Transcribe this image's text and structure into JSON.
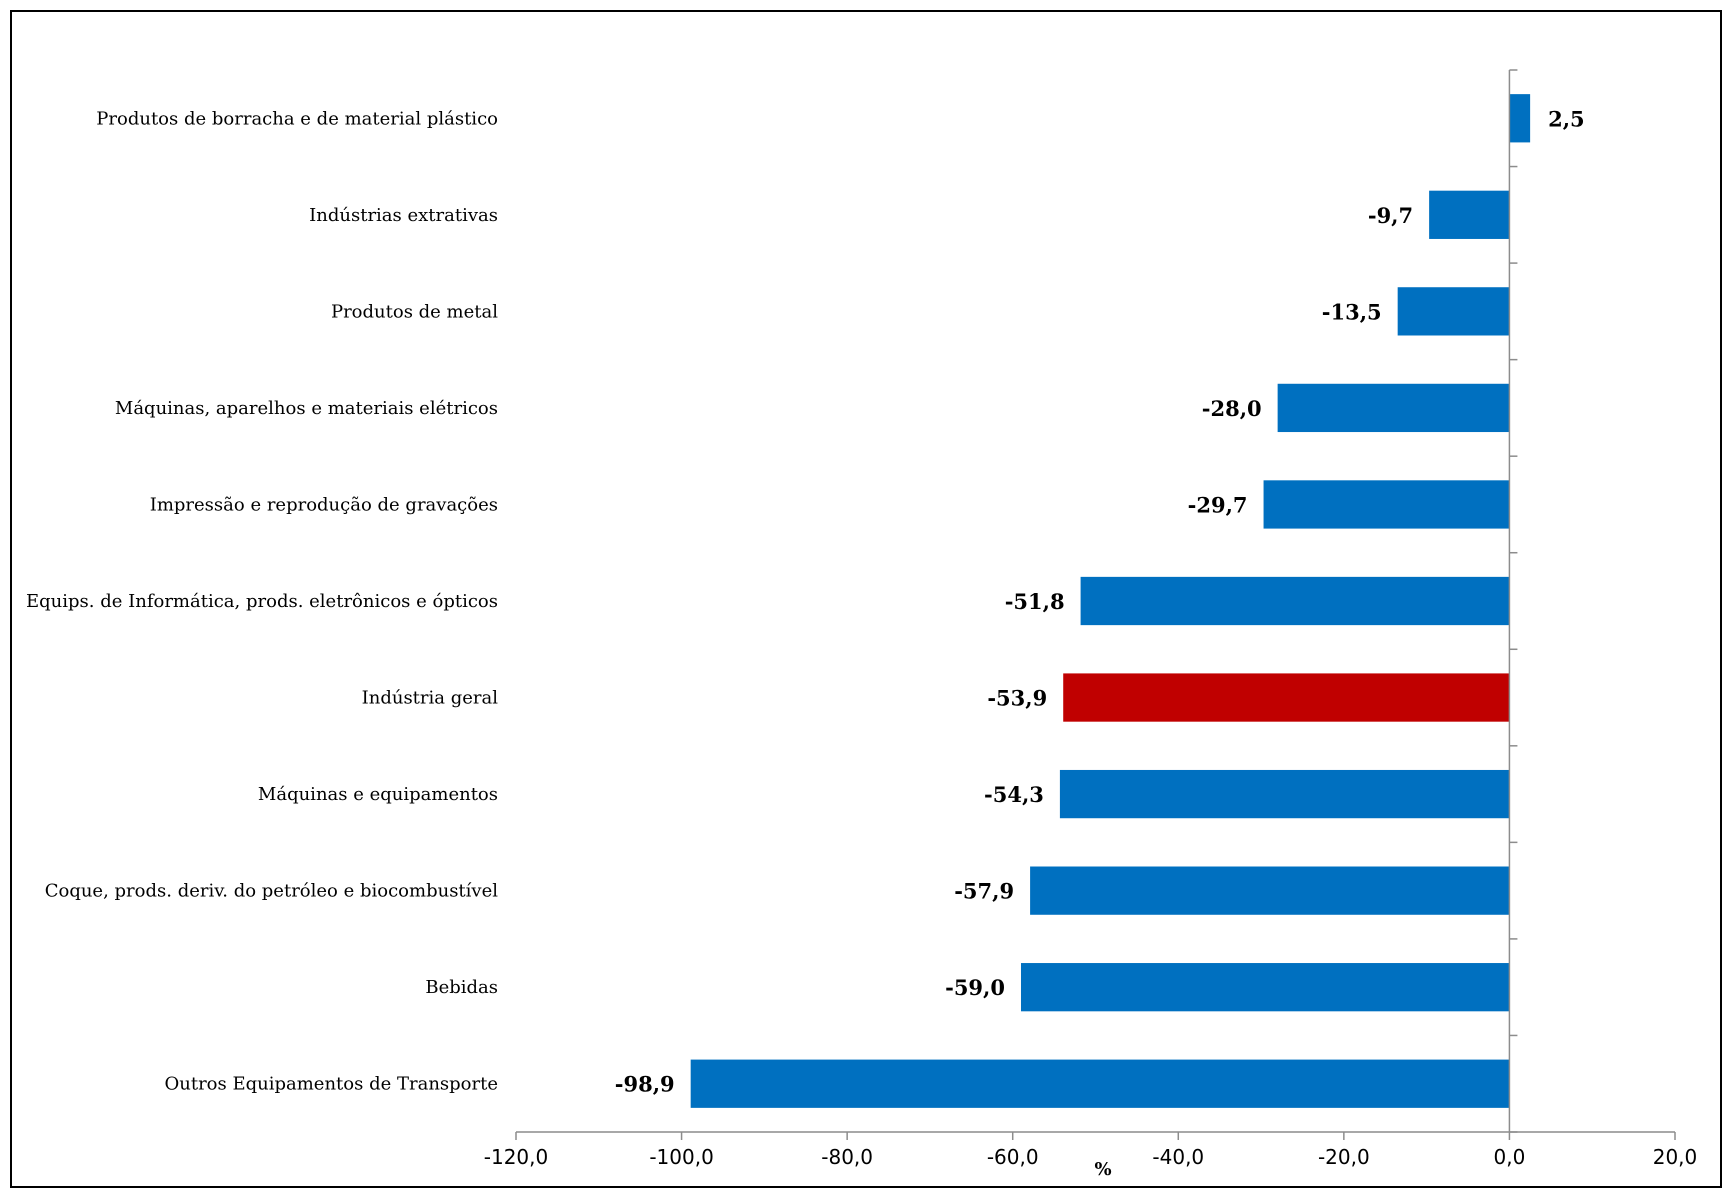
{
  "chart_data": {
    "type": "bar",
    "orientation": "horizontal",
    "title": "",
    "xlabel": "%",
    "ylabel": "",
    "xlim": [
      -120,
      20
    ],
    "x_ticks": [
      -120,
      -100,
      -80,
      -60,
      -40,
      -20,
      0,
      20
    ],
    "x_tick_labels": [
      "-120,0",
      "-100,0",
      "-80,0",
      "-60,0",
      "-40,0",
      "-20,0",
      "0,0",
      "20,0"
    ],
    "grid": false,
    "legend": "none",
    "colors": {
      "default": "#0070C0",
      "highlight": "#C00000"
    },
    "categories": [
      "Produtos de borracha e de material plástico",
      "Indústrias extrativas",
      "Produtos de metal",
      "Máquinas, aparelhos e materiais elétricos",
      "Impressão e reprodução de gravações",
      "Equips. de Informática, prods. eletrônicos e ópticos",
      "Indústria geral",
      "Máquinas e equipamentos",
      "Coque, prods. deriv. do petróleo e biocombustível",
      "Bebidas",
      "Outros Equipamentos de Transporte"
    ],
    "values": [
      2.5,
      -9.7,
      -13.5,
      -28.0,
      -29.7,
      -51.8,
      -53.9,
      -54.3,
      -57.9,
      -59.0,
      -98.9
    ],
    "value_labels": [
      "2,5",
      "-9,7",
      "-13,5",
      "-28,0",
      "-29,7",
      "-51,8",
      "-53,9",
      "-54,3",
      "-57,9",
      "-59,0",
      "-98,9"
    ],
    "highlight_category": "Indústria geral"
  }
}
